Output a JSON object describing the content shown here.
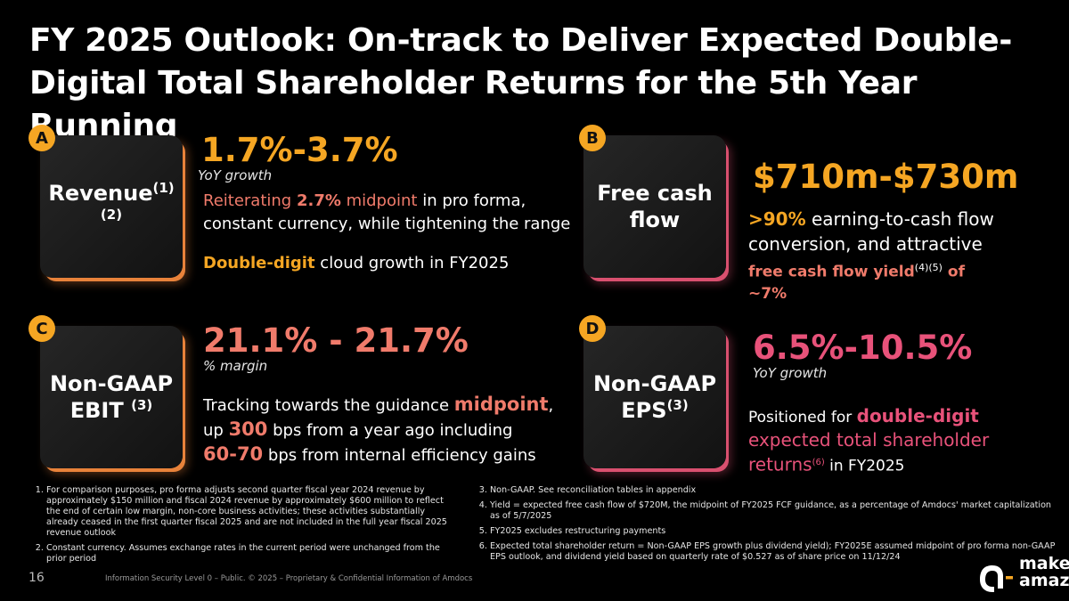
{
  "title": "FY 2025 Outlook: On-track to Deliver Expected Double-Digital Total Shareholder Returns for the 5th Year Running",
  "colors": {
    "orange": "#f5a623",
    "salmon": "#f07b6b",
    "pink": "#e8527a"
  },
  "quadrants": {
    "a": {
      "badge": "A",
      "card_label": "Revenue",
      "card_sup": "(1)(2)",
      "big_value": "1.7%-3.7%",
      "sub_label": "YoY growth",
      "line1_a": "Reiterating ",
      "line1_b": "2.7%",
      "line1_c": " midpoint",
      "line1_d": " in pro forma,",
      "line2": "constant currency, while tightening the range",
      "line3_a": "Double-digit",
      "line3_b": " cloud growth in FY2025"
    },
    "b": {
      "badge": "B",
      "card_label_1": "Free cash",
      "card_label_2": "flow",
      "big_value": "$710m-$730m",
      "line1_a": ">90%",
      "line1_b": " earning-to-cash flow",
      "line2": "conversion, and attractive",
      "line3_a": "free cash flow yield",
      "line3_sup": "(4)(5)",
      "line3_b": " of",
      "line4": "~7%"
    },
    "c": {
      "badge": "C",
      "card_label_1": "Non-GAAP",
      "card_label_2": "EBIT",
      "card_sup": "(3)",
      "big_value": "21.1% - 21.7%",
      "sub_label": "% margin",
      "line1_a": "Tracking towards the guidance ",
      "line1_b": "midpoint",
      "line1_c": ",",
      "line2_a": "up ",
      "line2_b": "300",
      "line2_c": " bps from a year ago including",
      "line3_a": "60-70",
      "line3_b": " bps from internal efficiency gains"
    },
    "d": {
      "badge": "D",
      "card_label_1": "Non-GAAP",
      "card_label_2": "EPS",
      "card_sup": "(3)",
      "big_value": "6.5%-10.5%",
      "sub_label": "YoY growth",
      "line1_a": "Positioned for ",
      "line1_b": "double-digit",
      "line2": "expected total shareholder",
      "line3_a": "returns",
      "line3_sup": "(6)",
      "line3_b": " in FY2025"
    }
  },
  "footnotes_left": [
    "For comparison purposes, pro forma adjusts second quarter fiscal year 2024 revenue by approximately $150 million and fiscal 2024 revenue by approximately $600 million to reflect the end of certain low margin, non-core business activities; these activities substantially already ceased in the first quarter fiscal 2025 and are not included in the full year fiscal 2025 revenue outlook",
    "Constant currency. Assumes exchange rates in the current period were unchanged from the prior period"
  ],
  "footnotes_right": [
    "Non-GAAP. See reconciliation tables in appendix",
    "Yield = expected free cash flow of $720M, the midpoint of FY2025 FCF guidance, as a percentage of Amdocs' market capitalization as of 5/7/2025",
    "FY2025 excludes restructuring payments",
    "Expected total shareholder return = Non-GAAP EPS growth plus dividend yield); FY2025E assumed midpoint of pro forma non-GAAP EPS outlook, and dividend yield based on quarterly rate of $0.527 as of share price on 11/12/24"
  ],
  "page_number": "16",
  "footer_text": "Information Security Level 0 – Public. © 2025 – Proprietary & Confidential Information of Amdocs",
  "logo": {
    "line1": "make it",
    "line2": "amazing"
  }
}
